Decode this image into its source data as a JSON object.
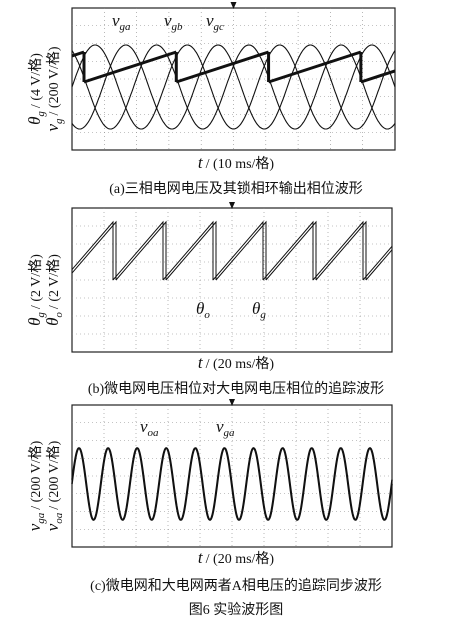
{
  "panels": [
    {
      "annotations": [
        {
          "symbol": "v",
          "subscript": "ga"
        },
        {
          "symbol": "v",
          "subscript": "gb"
        },
        {
          "symbol": "v",
          "subscript": "gc"
        }
      ],
      "y_labels": [
        {
          "symbol": "θ",
          "subscript": "g",
          "unit": "/ (4 V/格)"
        },
        {
          "symbol": "v",
          "subscript": "g",
          "unit": "/ (200 V/格)"
        }
      ],
      "x_label": {
        "symbol": "t",
        "unit": "/ (10 ms/格)"
      },
      "caption": "(a)三相电网电压及其锁相环输出相位波形"
    },
    {
      "annotations": [
        {
          "symbol": "θ",
          "subscript": "o"
        },
        {
          "symbol": "θ",
          "subscript": "g"
        }
      ],
      "y_labels": [
        {
          "symbol": "θ",
          "subscript": "g",
          "unit": "/ (2 V/格)"
        },
        {
          "symbol": "θ",
          "subscript": "o",
          "unit": "/ (2 V/格)"
        }
      ],
      "x_label": {
        "symbol": "t",
        "unit": "/ (20 ms/格)"
      },
      "caption": "(b)微电网电压相位对大电网电压相位的追踪波形"
    },
    {
      "annotations": [
        {
          "symbol": "v",
          "subscript": "oa"
        },
        {
          "symbol": "v",
          "subscript": "ga"
        }
      ],
      "y_labels": [
        {
          "symbol": "v",
          "subscript": "ga",
          "unit": "/ (200 V/格)"
        },
        {
          "symbol": "v",
          "subscript": "oa",
          "unit": "/ (200 V/格)"
        }
      ],
      "x_label": {
        "symbol": "t",
        "unit": "/ (20 ms/格)"
      },
      "caption": "(c)微电网和大电网两者A相电压的追踪同步波形"
    }
  ],
  "figure_title": "图6 实验波形图"
}
